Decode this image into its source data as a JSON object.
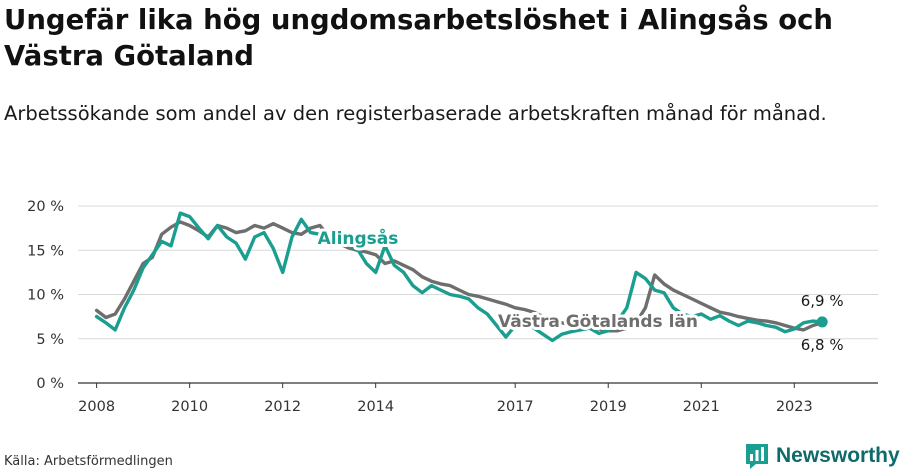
{
  "title": "Ungefär lika hög ungdomsarbetslöshet i Alingsås och Västra Götaland",
  "subtitle": "Arbetssökande som andel av den registerbaserade arbetskraften månad för månad.",
  "source": "Källa: Arbetsförmedlingen",
  "brand": {
    "name": "Newsworthy",
    "icon": "newsworthy-logo-icon",
    "color": "#0f6b6b"
  },
  "chart_data": {
    "type": "line",
    "title": "Ungefär lika hög ungdomsarbetslöshet i Alingsås och Västra Götaland",
    "xlabel": "",
    "ylabel": "",
    "ylim": [
      0,
      20
    ],
    "xlim": [
      2007.6,
      2024.8
    ],
    "grid": true,
    "y_ticks": [
      {
        "value": 0,
        "label": "0 %"
      },
      {
        "value": 5,
        "label": "5 %"
      },
      {
        "value": 10,
        "label": "10 %"
      },
      {
        "value": 15,
        "label": "15 %"
      },
      {
        "value": 20,
        "label": "20 %"
      }
    ],
    "x_ticks": [
      {
        "value": 2008,
        "label": "2008"
      },
      {
        "value": 2010,
        "label": "2010"
      },
      {
        "value": 2012,
        "label": "2012"
      },
      {
        "value": 2014,
        "label": "2014"
      },
      {
        "value": 2017,
        "label": "2017"
      },
      {
        "value": 2019,
        "label": "2019"
      },
      {
        "value": 2021,
        "label": "2021"
      },
      {
        "value": 2023,
        "label": "2023"
      }
    ],
    "series": [
      {
        "name": "Västra Götalands län",
        "label": "Västra Götalands län",
        "color": "#6e6e6e",
        "end_label": "6,8 %",
        "x": [
          2008.0,
          2008.2,
          2008.4,
          2008.6,
          2008.8,
          2009.0,
          2009.2,
          2009.4,
          2009.6,
          2009.8,
          2010.0,
          2010.2,
          2010.4,
          2010.6,
          2010.8,
          2011.0,
          2011.2,
          2011.4,
          2011.6,
          2011.8,
          2012.0,
          2012.2,
          2012.4,
          2012.6,
          2012.8,
          2013.0,
          2013.2,
          2013.4,
          2013.6,
          2013.8,
          2014.0,
          2014.2,
          2014.4,
          2014.6,
          2014.8,
          2015.0,
          2015.2,
          2015.4,
          2015.6,
          2015.8,
          2016.0,
          2016.2,
          2016.4,
          2016.6,
          2016.8,
          2017.0,
          2017.2,
          2017.4,
          2017.6,
          2017.8,
          2018.0,
          2018.2,
          2018.4,
          2018.6,
          2018.8,
          2019.0,
          2019.2,
          2019.4,
          2019.6,
          2019.8,
          2020.0,
          2020.2,
          2020.4,
          2020.6,
          2020.8,
          2021.0,
          2021.2,
          2021.4,
          2021.6,
          2021.8,
          2022.0,
          2022.2,
          2022.4,
          2022.6,
          2022.8,
          2023.0,
          2023.2,
          2023.4,
          2023.6
        ],
        "values": [
          8.2,
          7.4,
          7.8,
          9.5,
          11.5,
          13.5,
          14.2,
          16.8,
          17.6,
          18.2,
          17.8,
          17.2,
          16.5,
          17.8,
          17.5,
          17.0,
          17.2,
          17.8,
          17.5,
          18.0,
          17.5,
          17.0,
          16.8,
          17.5,
          17.8,
          16.5,
          15.8,
          15.3,
          15.0,
          14.8,
          14.5,
          13.5,
          13.8,
          13.3,
          12.8,
          12.0,
          11.5,
          11.2,
          11.0,
          10.5,
          10.0,
          9.8,
          9.5,
          9.2,
          8.9,
          8.5,
          8.3,
          8.0,
          7.5,
          7.0,
          6.8,
          6.6,
          6.5,
          6.3,
          6.1,
          5.9,
          5.9,
          6.2,
          6.8,
          8.5,
          12.2,
          11.2,
          10.5,
          10.0,
          9.5,
          9.0,
          8.5,
          8.0,
          7.8,
          7.5,
          7.3,
          7.1,
          7.0,
          6.8,
          6.5,
          6.2,
          6.0,
          6.5,
          6.8
        ]
      },
      {
        "name": "Alingsås",
        "label": "Alingsås",
        "color": "#1a9e8f",
        "end_label": "6,9 %",
        "x": [
          2008.0,
          2008.2,
          2008.4,
          2008.6,
          2008.8,
          2009.0,
          2009.2,
          2009.4,
          2009.6,
          2009.8,
          2010.0,
          2010.2,
          2010.4,
          2010.6,
          2010.8,
          2011.0,
          2011.2,
          2011.4,
          2011.6,
          2011.8,
          2012.0,
          2012.2,
          2012.4,
          2012.6,
          2012.8,
          2013.0,
          2013.2,
          2013.4,
          2013.6,
          2013.8,
          2014.0,
          2014.2,
          2014.4,
          2014.6,
          2014.8,
          2015.0,
          2015.2,
          2015.4,
          2015.6,
          2015.8,
          2016.0,
          2016.2,
          2016.4,
          2016.6,
          2016.8,
          2017.0,
          2017.2,
          2017.4,
          2017.6,
          2017.8,
          2018.0,
          2018.2,
          2018.4,
          2018.6,
          2018.8,
          2019.0,
          2019.2,
          2019.4,
          2019.6,
          2019.8,
          2020.0,
          2020.2,
          2020.4,
          2020.6,
          2020.8,
          2021.0,
          2021.2,
          2021.4,
          2021.6,
          2021.8,
          2022.0,
          2022.2,
          2022.4,
          2022.6,
          2022.8,
          2023.0,
          2023.2,
          2023.4,
          2023.6
        ],
        "values": [
          7.5,
          6.8,
          6.0,
          8.5,
          10.5,
          13.0,
          14.5,
          16.0,
          15.5,
          19.2,
          18.8,
          17.5,
          16.3,
          17.8,
          16.5,
          15.8,
          14.0,
          16.5,
          17.0,
          15.2,
          12.5,
          16.5,
          18.5,
          17.0,
          16.8,
          16.0,
          15.8,
          15.5,
          15.2,
          13.5,
          12.5,
          15.5,
          13.3,
          12.5,
          11.0,
          10.2,
          11.0,
          10.5,
          10.0,
          9.8,
          9.5,
          8.5,
          7.8,
          6.5,
          5.2,
          6.5,
          7.0,
          6.2,
          5.5,
          4.8,
          5.5,
          5.8,
          6.0,
          6.2,
          5.6,
          5.9,
          7.0,
          8.5,
          12.5,
          11.8,
          10.5,
          10.2,
          8.5,
          7.8,
          7.5,
          7.8,
          7.2,
          7.6,
          7.0,
          6.5,
          7.0,
          6.8,
          6.5,
          6.3,
          5.8,
          6.1,
          6.8,
          7.0,
          6.9
        ]
      }
    ]
  }
}
